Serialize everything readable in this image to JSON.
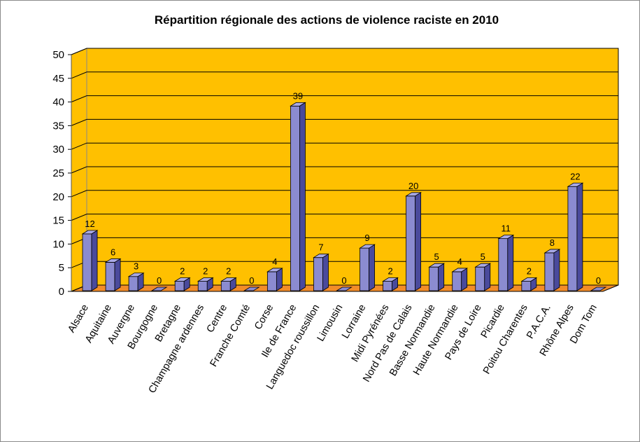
{
  "chart_data": {
    "type": "bar",
    "title": "Répartition régionale des actions de violence raciste en 2010",
    "xlabel": "",
    "ylabel": "",
    "ylim": [
      0,
      50
    ],
    "yticks": [
      0,
      5,
      10,
      15,
      20,
      25,
      30,
      35,
      40,
      45,
      50
    ],
    "grid": true,
    "legend": "none",
    "three_d": true,
    "categories": [
      "Alsace",
      "Aquitaine",
      "Auvergne",
      "Bourgogne",
      "Bretagne",
      "Champagne ardennes",
      "Centre",
      "Franche Comté",
      "Corse",
      "Ile de France",
      "Languedoc roussillon",
      "Limousin",
      "Lorraine",
      "Midi Pyrénées",
      "Nord Pas de Calais",
      "Basse Normandie",
      "Haute Normandie",
      "Pays de Loire",
      "Picardie",
      "Poitou Charentes",
      "P.A.C.A.",
      "Rhône Alpes",
      "Dom Tom"
    ],
    "series": [
      {
        "values": [
          12,
          6,
          3,
          0,
          2,
          2,
          2,
          0,
          4,
          39,
          7,
          0,
          9,
          2,
          20,
          5,
          4,
          5,
          11,
          2,
          8,
          22,
          0
        ]
      }
    ],
    "colors": {
      "wall": "#FFC000",
      "floor": "#F28C28",
      "bar_front": "#8B8BD0",
      "bar_side": "#4A4A9C",
      "bar_top": "#A9A9E6",
      "gridline": "#000000"
    }
  }
}
